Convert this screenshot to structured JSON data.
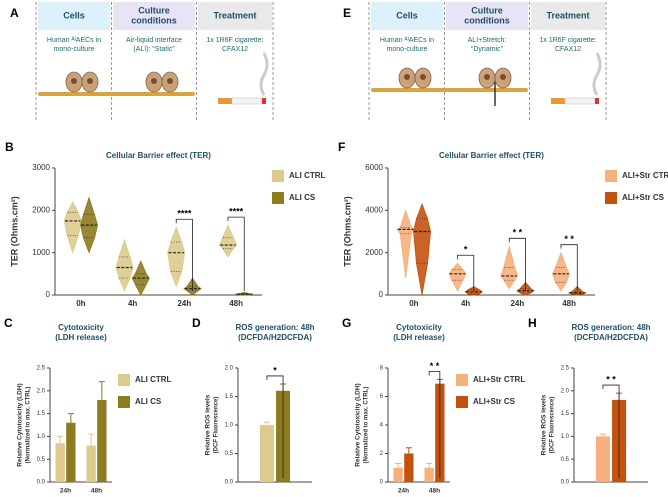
{
  "schemes": [
    {
      "panel": "A",
      "headers": [
        [
          "Cells"
        ],
        [
          "Culture",
          "conditions"
        ],
        [
          "Treatment"
        ]
      ],
      "texts": [
        [
          "Human ᴬᴵAECs in",
          "mono-culture"
        ],
        [
          "Air-liquid interface",
          "(ALI): “Static”"
        ],
        [
          "1x 1R6F cigarette:",
          "CFAX12"
        ]
      ]
    },
    {
      "panel": "E",
      "headers": [
        [
          "Cells"
        ],
        [
          "Culture",
          "conditions"
        ],
        [
          "Treatment"
        ]
      ],
      "texts": [
        [
          "Human ᴬᴵAECs in",
          "mono-culture"
        ],
        [
          "ALI+Stretch:",
          "“Dynamic”"
        ],
        [
          "1x 1R6F cigarette:",
          "CFAX12"
        ]
      ]
    }
  ],
  "chart_data": [
    {
      "type": "violin",
      "panel": "B",
      "title": "Cellular Barrier effect (TER)",
      "ylabel": [
        "TER (Ohms.cm²)"
      ],
      "categories": [
        "0h",
        "4h",
        "24h",
        "48h"
      ],
      "ylim": [
        0,
        3000
      ],
      "yticks": [
        0,
        1000,
        2000,
        3000
      ],
      "legend": true,
      "series": [
        {
          "name": "ALI CTRL",
          "color": "#dccb8c",
          "min": [
            1000,
            100,
            200,
            900
          ],
          "q1": [
            1400,
            400,
            550,
            1100
          ],
          "median": [
            1750,
            650,
            1000,
            1180
          ],
          "q3": [
            1950,
            900,
            1250,
            1350
          ],
          "max": [
            2200,
            1300,
            1600,
            1650
          ]
        },
        {
          "name": "ALI CS",
          "color": "#8c7b1f",
          "min": [
            1000,
            0,
            0,
            0
          ],
          "q1": [
            1350,
            250,
            100,
            10
          ],
          "median": [
            1650,
            400,
            150,
            20
          ],
          "q3": [
            1900,
            500,
            200,
            30
          ],
          "max": [
            2300,
            800,
            400,
            60
          ]
        }
      ],
      "annotations": [
        {
          "text": "****",
          "category": 2
        },
        {
          "text": "****",
          "category": 3
        }
      ]
    },
    {
      "type": "violin",
      "panel": "F",
      "title": "Cellular Barrier effect (TER)",
      "ylabel": [
        "TER (Ohms.cm²)"
      ],
      "categories": [
        "0h",
        "4h",
        "24h",
        "48h"
      ],
      "ylim": [
        0,
        6000
      ],
      "yticks": [
        0,
        2000,
        4000,
        6000
      ],
      "legend": true,
      "series": [
        {
          "name": "ALI+Str CTRL",
          "color": "#f6b07c",
          "min": [
            800,
            200,
            300,
            200
          ],
          "q1": [
            2900,
            700,
            700,
            600
          ],
          "median": [
            3100,
            1000,
            900,
            1000
          ],
          "q3": [
            3200,
            1200,
            1300,
            1300
          ],
          "max": [
            4000,
            1500,
            2300,
            2000
          ]
        },
        {
          "name": "ALI+Str CS",
          "color": "#c4520f",
          "min": [
            0,
            0,
            0,
            0
          ],
          "q1": [
            1500,
            50,
            100,
            50
          ],
          "median": [
            3000,
            150,
            200,
            100
          ],
          "q3": [
            3600,
            250,
            300,
            150
          ],
          "max": [
            4300,
            400,
            600,
            400
          ]
        }
      ],
      "annotations": [
        {
          "text": "*",
          "category": 1
        },
        {
          "text": "* *",
          "category": 2
        },
        {
          "text": "* *",
          "category": 3
        }
      ]
    },
    {
      "type": "bar",
      "panel": "C",
      "title": "Cytotoxicity",
      "subtitle": "(LDH release)",
      "ylabel": [
        "Relative Cytotoxicity (LDH)",
        "(Normalized to max. CTRL)"
      ],
      "categories": [
        "24h",
        "48h"
      ],
      "ylim": [
        0,
        2.5
      ],
      "yticks": [
        {
          "value": 0,
          "label": "0.0"
        },
        0.5,
        {
          "value": 1,
          "label": "1.0"
        },
        1.5,
        {
          "value": 2,
          "label": "2.0"
        },
        2.5
      ],
      "legend": true,
      "series": [
        {
          "name": "ALI CTRL",
          "color": "#dccb8c",
          "values": [
            0.85,
            0.8
          ],
          "errors": [
            0.15,
            0.25
          ]
        },
        {
          "name": "ALI CS",
          "color": "#8c7b1f",
          "values": [
            1.3,
            1.8
          ],
          "errors": [
            0.2,
            0.4
          ]
        }
      ],
      "annotations": []
    },
    {
      "type": "bar",
      "panel": "D",
      "title": "ROS generation: 48h",
      "subtitle": "(DCFDA/H2DCFDA)",
      "ylabel": [
        "Relative ROS levels",
        "(DCF Fluorescence)"
      ],
      "categories": [
        null
      ],
      "ylim": [
        0,
        2
      ],
      "yticks": [
        {
          "value": 0,
          "label": "0.0"
        },
        0.5,
        {
          "value": 1,
          "label": "1.0"
        },
        1.5,
        {
          "value": 2,
          "label": "2.0"
        }
      ],
      "legend": false,
      "series": [
        {
          "color": "#dccb8c",
          "values": [
            1.0
          ],
          "errors": [
            0.05
          ]
        },
        {
          "color": "#8c7b1f",
          "values": [
            1.6
          ],
          "errors": [
            0.12
          ]
        }
      ],
      "annotations": [
        {
          "text": "*",
          "category": 0
        }
      ]
    },
    {
      "type": "bar",
      "panel": "G",
      "title": "Cytotoxicity",
      "subtitle": "(LDH release)",
      "ylabel": [
        "Relative Cytotoxicity (LDH)",
        "(Normalized to max. CTRL)"
      ],
      "categories": [
        "24h",
        "48h"
      ],
      "ylim": [
        0,
        8
      ],
      "yticks": [
        0,
        2,
        4,
        6,
        8
      ],
      "legend": true,
      "series": [
        {
          "name": "ALI+Str CTRL",
          "color": "#f6b07c",
          "values": [
            1.0,
            1.0
          ],
          "errors": [
            0.3,
            0.3
          ]
        },
        {
          "name": "ALI+Str CS",
          "color": "#c4520f",
          "values": [
            2.0,
            6.9
          ],
          "errors": [
            0.4,
            0.3
          ]
        }
      ],
      "annotations": [
        {
          "text": "* *",
          "category": 1
        }
      ]
    },
    {
      "type": "bar",
      "panel": "H",
      "title": "ROS generation: 48h",
      "subtitle": "(DCFDA/H2DCFDA)",
      "ylabel": [
        "Relative ROS levels",
        "(DCF Fluorescence)"
      ],
      "categories": [
        null
      ],
      "ylim": [
        0,
        2.5
      ],
      "yticks": [
        {
          "value": 0,
          "label": "0.0"
        },
        0.5,
        {
          "value": 1,
          "label": "1.0"
        },
        1.5,
        {
          "value": 2,
          "label": "2.0"
        },
        2.5
      ],
      "legend": false,
      "series": [
        {
          "color": "#f6b07c",
          "values": [
            1.0
          ],
          "errors": [
            0.05
          ]
        },
        {
          "color": "#c4520f",
          "values": [
            1.8
          ],
          "errors": [
            0.15
          ]
        }
      ],
      "annotations": [
        {
          "text": "* *",
          "category": 0
        }
      ]
    }
  ]
}
